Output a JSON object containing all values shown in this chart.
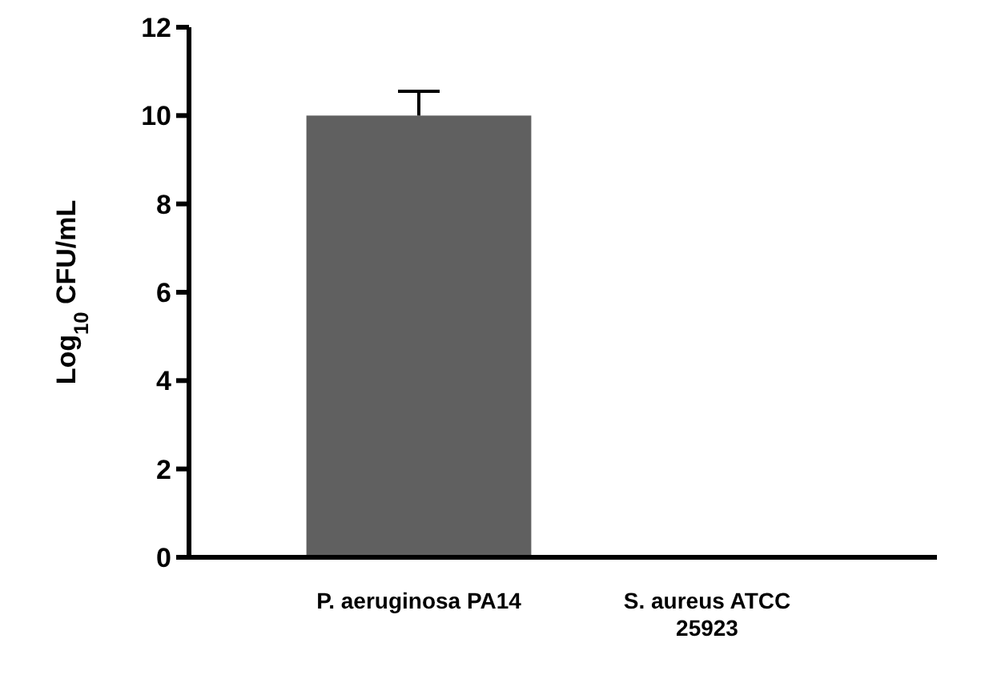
{
  "chart_data": {
    "type": "bar",
    "ylabel": "Log$_{10}$ CFU/mL",
    "categories": [
      "P. aeruginosa PA14",
      "S. aureus ATCC 25923"
    ],
    "values": [
      10,
      0
    ],
    "color": "#606060",
    "errors": [
      [
        10,
        10.55
      ],
      null
    ],
    "ylim": [
      0,
      12
    ],
    "yticks": [
      0,
      2,
      4,
      6,
      8,
      10,
      12
    ],
    "grid": false
  }
}
